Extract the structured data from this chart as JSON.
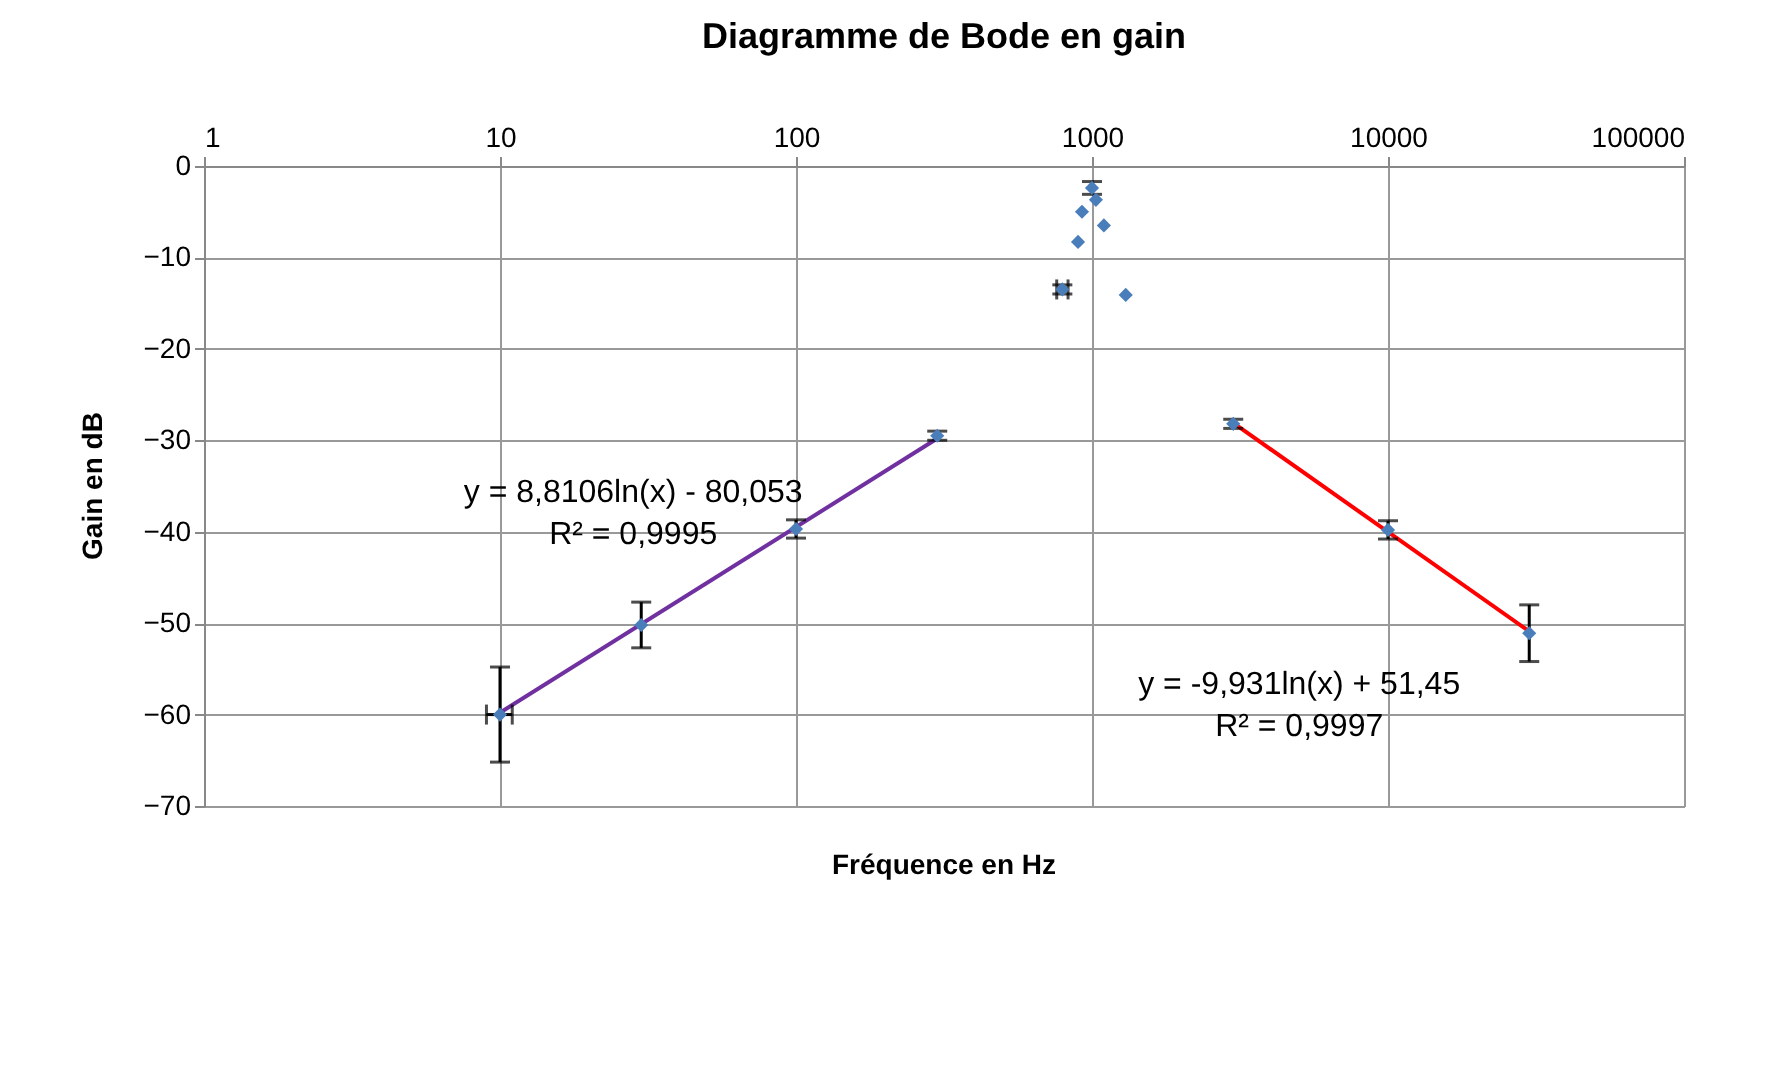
{
  "chart_data": {
    "type": "scatter",
    "title": "Diagramme de Bode en gain",
    "xlabel": "Fréquence en Hz",
    "ylabel": "Gain en dB",
    "log": "x",
    "xlim": [
      1,
      100000
    ],
    "xticks": [
      1,
      10,
      100,
      1000,
      10000,
      100000
    ],
    "ylim": [
      -70,
      0
    ],
    "yticks": [
      -70,
      -60,
      -50,
      -40,
      -30,
      -20,
      -10,
      0
    ],
    "grid": true,
    "series": [
      {
        "type": "line",
        "color": "#7030a0",
        "x": [
          10,
          300
        ],
        "values": [
          -59.8,
          -29.8
        ],
        "marker": "none"
      },
      {
        "type": "line",
        "color": "#ff0000",
        "x": [
          3000,
          30000
        ],
        "values": [
          -28.1,
          -50.9
        ],
        "marker": "none"
      },
      {
        "color": "#4a7ebb",
        "marker": "diamond",
        "x": [
          10,
          30,
          100,
          300,
          794,
          897,
          925,
          1000,
          1031,
          1097,
          1300,
          3000,
          10000,
          30000
        ],
        "values": [
          -60,
          -50.2,
          -39.7,
          -29.5,
          -13.5,
          -8.3,
          -5,
          -2.4,
          -3.7,
          -6.5,
          -14.1,
          -28.2,
          -39.8,
          -51.1
        ],
        "errors": [
          5.2,
          2.5,
          1,
          0.5,
          0.5,
          null,
          null,
          0.7,
          null,
          null,
          null,
          0.5,
          1,
          3.1
        ],
        "xerrors": [
          [
            9,
            11
          ],
          null,
          null,
          null,
          [
            760,
            830
          ],
          null,
          null,
          null,
          null,
          null,
          null,
          null,
          null,
          null
        ]
      }
    ],
    "annotations": [
      "y = 8,8106ln(x) - 80,053",
      "R² = 0,9995",
      "y = -9,931ln(x) + 51,45",
      "R² = 0,9997"
    ]
  }
}
